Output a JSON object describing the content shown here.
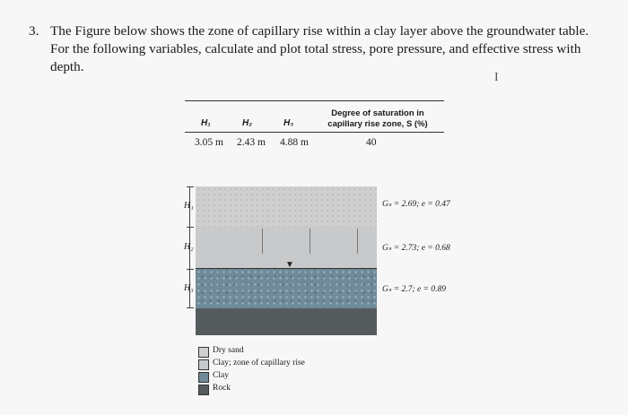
{
  "question": {
    "number": "3.",
    "text": "The Figure below shows the zone of capillary rise within a clay layer above the groundwater table. For the following variables, calculate and plot total stress, pore pressure, and effective stress with depth."
  },
  "cursor_glyph": "I",
  "table": {
    "headers": {
      "h1": "H₁",
      "h2": "H₂",
      "h3": "H₃",
      "saturation": "Degree of saturation in capillary rise zone, S (%)"
    },
    "values": {
      "h1": "3.05 m",
      "h2": "2.43 m",
      "h3": "4.88 m",
      "saturation": "40"
    }
  },
  "figure": {
    "depth_labels": {
      "h1": "H₁",
      "h2": "H₂",
      "h3": "H₃"
    },
    "layer_properties": {
      "dry_sand": "Gₛ = 2.69; e = 0.47",
      "capillary_clay": "Gₛ = 2.73; e = 0.68",
      "clay": "Gₛ = 2.7; e = 0.89"
    },
    "water_table_symbol": "▼"
  },
  "legend": [
    {
      "label": "Dry sand",
      "color": "#cfcfcf"
    },
    {
      "label": "Clay; zone of capillary rise",
      "color": "#c7c9cb"
    },
    {
      "label": "Clay",
      "color": "#6f8a98"
    },
    {
      "label": "Rock",
      "color": "#555a5c"
    }
  ]
}
